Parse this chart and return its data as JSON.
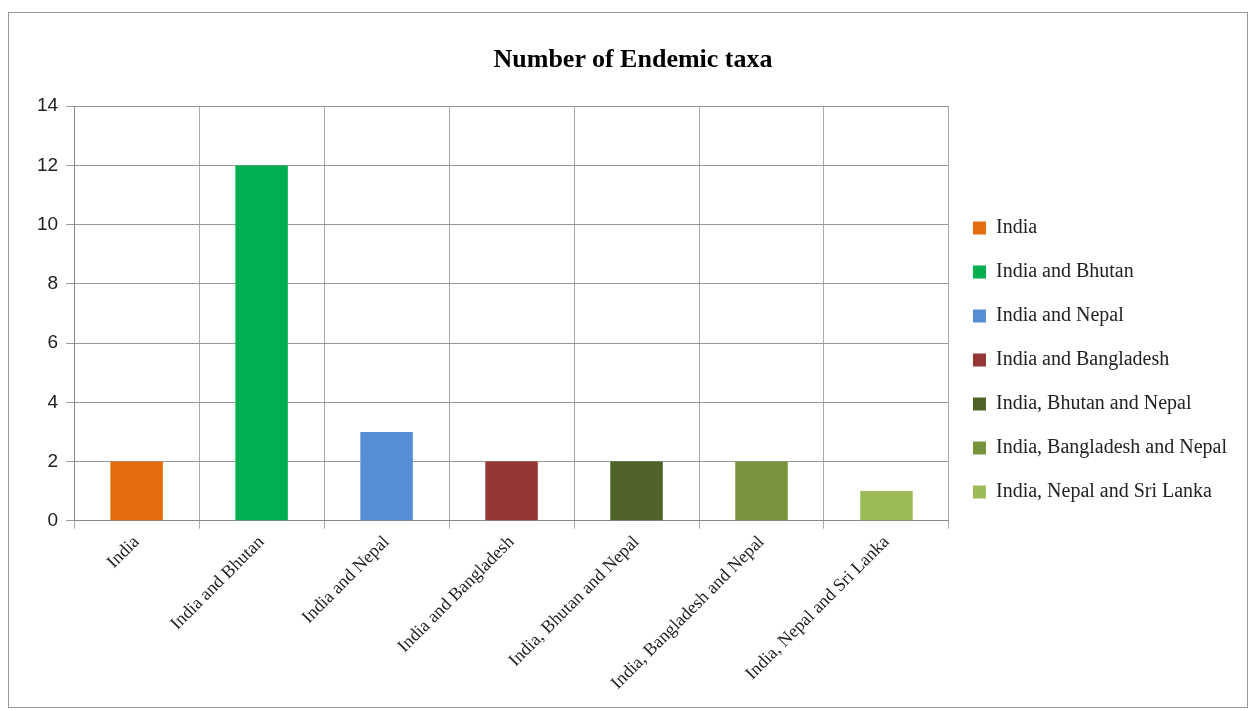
{
  "chart_data": {
    "type": "bar",
    "title": "Number of Endemic taxa",
    "categories": [
      "India",
      "India and Bhutan",
      "India and Nepal",
      "India and Bangladesh",
      "India, Bhutan and Nepal",
      "India, Bangladesh and Nepal",
      "India, Nepal and Sri Lanka"
    ],
    "series": [
      {
        "name": "India",
        "color": "#e46c0a",
        "values": [
          2,
          null,
          null,
          null,
          null,
          null,
          null
        ]
      },
      {
        "name": "India and Bhutan",
        "color": "#00b050",
        "values": [
          null,
          12,
          null,
          null,
          null,
          null,
          null
        ]
      },
      {
        "name": "India and Nepal",
        "color": "#558ed5",
        "values": [
          null,
          null,
          3,
          null,
          null,
          null,
          null
        ]
      },
      {
        "name": "India and Bangladesh",
        "color": "#953735",
        "values": [
          null,
          null,
          null,
          2,
          null,
          null,
          null
        ]
      },
      {
        "name": "India, Bhutan and Nepal",
        "color": "#4f6228",
        "values": [
          null,
          null,
          null,
          null,
          2,
          null,
          null
        ]
      },
      {
        "name": "India, Bangladesh and Nepal",
        "color": "#77933c",
        "values": [
          null,
          null,
          null,
          null,
          null,
          2,
          null
        ]
      },
      {
        "name": "India, Nepal and Sri Lanka",
        "color": "#9bbb59",
        "values": [
          null,
          null,
          null,
          null,
          null,
          null,
          1
        ]
      }
    ],
    "ylim": [
      0,
      14
    ],
    "yticks": [
      0,
      2,
      4,
      6,
      8,
      10,
      12,
      14
    ],
    "grid": true,
    "legend": "right"
  }
}
